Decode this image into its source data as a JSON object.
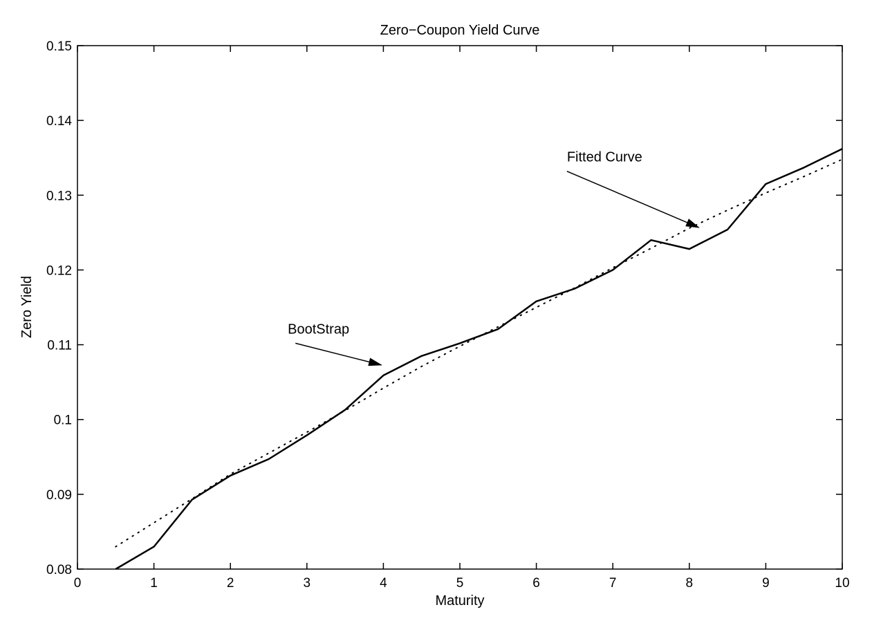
{
  "chart_data": {
    "type": "line",
    "title": "Zero−Coupon Yield Curve",
    "xlabel": "Maturity",
    "ylabel": "Zero Yield",
    "xlim": [
      0,
      10
    ],
    "ylim": [
      0.08,
      0.15
    ],
    "xticks": [
      0,
      1,
      2,
      3,
      4,
      5,
      6,
      7,
      8,
      9,
      10
    ],
    "xtick_labels": [
      "0",
      "1",
      "2",
      "3",
      "4",
      "5",
      "6",
      "7",
      "8",
      "9",
      "10"
    ],
    "yticks": [
      0.08,
      0.09,
      0.1,
      0.11,
      0.12,
      0.13,
      0.14,
      0.15
    ],
    "ytick_labels": [
      "0.08",
      "0.09",
      "0.1",
      "0.11",
      "0.12",
      "0.13",
      "0.14",
      "0.15"
    ],
    "grid": false,
    "series": [
      {
        "name": "BootStrap",
        "style": "solid",
        "color": "#000000",
        "x": [
          0.5,
          1,
          1.5,
          2,
          2.5,
          3,
          3.5,
          4,
          4.5,
          5,
          5.5,
          6,
          6.5,
          7,
          7.5,
          8,
          8.5,
          9,
          9.5,
          10
        ],
        "y": [
          0.08,
          0.083,
          0.0893,
          0.0925,
          0.0947,
          0.0979,
          0.1013,
          0.1059,
          0.1085,
          0.1102,
          0.1121,
          0.1158,
          0.1175,
          0.12,
          0.124,
          0.1228,
          0.1254,
          0.1315,
          0.1337,
          0.1362
        ]
      },
      {
        "name": "Fitted Curve",
        "style": "dotted",
        "color": "#000000",
        "x": [
          0.5,
          1,
          1.5,
          2,
          2.5,
          3,
          3.5,
          4,
          4.5,
          5,
          5.5,
          6,
          6.5,
          7,
          7.5,
          8,
          8.5,
          9,
          9.5,
          10
        ],
        "y": [
          0.083,
          0.0862,
          0.0894,
          0.0927,
          0.0955,
          0.0983,
          0.1012,
          0.1042,
          0.1071,
          0.1098,
          0.1124,
          0.115,
          0.1176,
          0.1203,
          0.1229,
          0.1256,
          0.128,
          0.1303,
          0.1325,
          0.1348
        ]
      }
    ],
    "annotations": [
      {
        "text": "BootStrap",
        "text_x": 2.75,
        "text_y": 0.1115,
        "arrow_from": [
          2.85,
          0.1102
        ],
        "arrow_to": [
          3.97,
          0.1073
        ]
      },
      {
        "text": "Fitted Curve",
        "text_x": 6.4,
        "text_y": 0.1345,
        "arrow_from": [
          6.4,
          0.1332
        ],
        "arrow_to": [
          8.12,
          0.1257
        ]
      }
    ]
  }
}
